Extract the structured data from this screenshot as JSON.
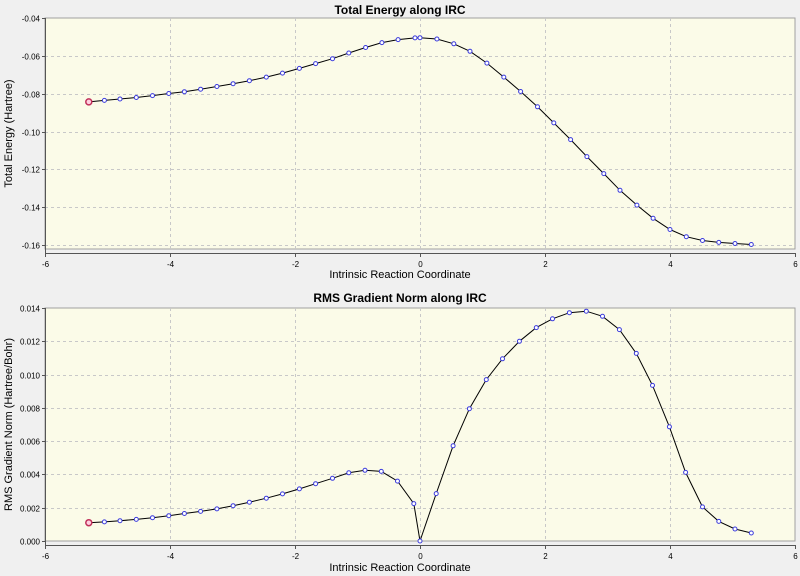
{
  "chart_data": [
    {
      "type": "line",
      "title": "Total Energy along IRC",
      "xlabel": "Intrinsic Reaction Coordinate",
      "ylabel": "Total Energy (Hartree)",
      "xlim": [
        -6,
        6
      ],
      "ylim": [
        -0.162,
        -0.04
      ],
      "xticks": [
        -6,
        -4,
        -2,
        0,
        2,
        4,
        6
      ],
      "yticks": [
        -0.16,
        -0.14,
        -0.12,
        -0.1,
        -0.08,
        -0.06,
        -0.04
      ],
      "ytick_labels": [
        "-0.16",
        "-0.14",
        "-0.12",
        "-0.10",
        "-0.08",
        "-0.06",
        "-0.04"
      ],
      "grid": true,
      "start_marker": true,
      "series": [
        {
          "points": [
            [
              -5.3,
              -0.0843
            ],
            [
              -5.05,
              -0.0835
            ],
            [
              -4.8,
              -0.0828
            ],
            [
              -4.54,
              -0.082
            ],
            [
              -4.28,
              -0.081
            ],
            [
              -4.02,
              -0.0799
            ],
            [
              -3.77,
              -0.0789
            ],
            [
              -3.51,
              -0.0776
            ],
            [
              -3.25,
              -0.0762
            ],
            [
              -2.99,
              -0.0747
            ],
            [
              -2.73,
              -0.0731
            ],
            [
              -2.46,
              -0.0712
            ],
            [
              -2.2,
              -0.0691
            ],
            [
              -1.93,
              -0.0666
            ],
            [
              -1.67,
              -0.0641
            ],
            [
              -1.4,
              -0.0615
            ],
            [
              -1.14,
              -0.0585
            ],
            [
              -0.87,
              -0.0556
            ],
            [
              -0.61,
              -0.053
            ],
            [
              -0.35,
              -0.0514
            ],
            [
              -0.08,
              -0.0505
            ],
            [
              0.0,
              -0.0504
            ],
            [
              0.27,
              -0.0511
            ],
            [
              0.54,
              -0.0536
            ],
            [
              0.8,
              -0.0576
            ],
            [
              1.07,
              -0.0638
            ],
            [
              1.34,
              -0.0712
            ],
            [
              1.61,
              -0.0788
            ],
            [
              1.88,
              -0.0869
            ],
            [
              2.14,
              -0.0954
            ],
            [
              2.41,
              -0.1042
            ],
            [
              2.67,
              -0.1132
            ],
            [
              2.94,
              -0.1222
            ],
            [
              3.2,
              -0.131
            ],
            [
              3.47,
              -0.1388
            ],
            [
              3.73,
              -0.1458
            ],
            [
              4.0,
              -0.1517
            ],
            [
              4.26,
              -0.1555
            ],
            [
              4.52,
              -0.1575
            ],
            [
              4.78,
              -0.1585
            ],
            [
              5.04,
              -0.1591
            ],
            [
              5.3,
              -0.1596
            ]
          ]
        }
      ]
    },
    {
      "type": "line",
      "title": "RMS Gradient Norm along IRC",
      "xlabel": "Intrinsic Reaction Coordinate",
      "ylabel": "RMS Gradient Norm (Hartree/Bohr)",
      "xlim": [
        -6,
        6
      ],
      "ylim": [
        0,
        0.014
      ],
      "xticks": [
        -6,
        -4,
        -2,
        0,
        2,
        4,
        6
      ],
      "yticks": [
        0,
        0.002,
        0.004,
        0.006,
        0.008,
        0.01,
        0.012,
        0.014
      ],
      "ytick_labels": [
        "0.000",
        "0.002",
        "0.004",
        "0.006",
        "0.008",
        "0.010",
        "0.012",
        "0.014"
      ],
      "grid": true,
      "start_marker": true,
      "series": [
        {
          "points": [
            [
              -5.3,
              0.0011
            ],
            [
              -5.05,
              0.00115
            ],
            [
              -4.8,
              0.00122
            ],
            [
              -4.54,
              0.0013
            ],
            [
              -4.28,
              0.0014
            ],
            [
              -4.02,
              0.00152
            ],
            [
              -3.77,
              0.00165
            ],
            [
              -3.51,
              0.00178
            ],
            [
              -3.25,
              0.00193
            ],
            [
              -2.99,
              0.00212
            ],
            [
              -2.73,
              0.00233
            ],
            [
              -2.46,
              0.00257
            ],
            [
              -2.2,
              0.00283
            ],
            [
              -1.93,
              0.00313
            ],
            [
              -1.67,
              0.00344
            ],
            [
              -1.4,
              0.00377
            ],
            [
              -1.14,
              0.0041
            ],
            [
              -0.88,
              0.00425
            ],
            [
              -0.62,
              0.00418
            ],
            [
              -0.36,
              0.0036
            ],
            [
              -0.1,
              0.00225
            ],
            [
              0.0,
              0.0
            ],
            [
              0.26,
              0.00285
            ],
            [
              0.53,
              0.00572
            ],
            [
              0.79,
              0.00795
            ],
            [
              1.06,
              0.0097
            ],
            [
              1.32,
              0.01095
            ],
            [
              1.59,
              0.012
            ],
            [
              1.86,
              0.01282
            ],
            [
              2.12,
              0.01335
            ],
            [
              2.39,
              0.01372
            ],
            [
              2.66,
              0.01381
            ],
            [
              2.92,
              0.0135
            ],
            [
              3.19,
              0.0127
            ],
            [
              3.46,
              0.01127
            ],
            [
              3.72,
              0.00935
            ],
            [
              3.99,
              0.00686
            ],
            [
              4.25,
              0.00412
            ],
            [
              4.52,
              0.00205
            ],
            [
              4.78,
              0.00118
            ],
            [
              5.04,
              0.00072
            ],
            [
              5.3,
              0.00048
            ]
          ]
        }
      ]
    }
  ]
}
